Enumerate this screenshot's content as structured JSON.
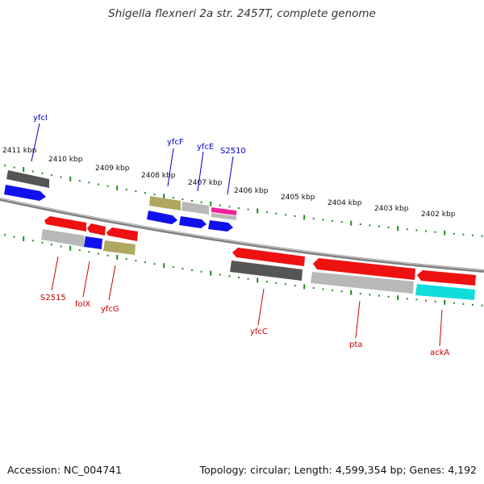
{
  "title": "Shigella flexneri 2a str. 2457T, complete genome",
  "footer": {
    "accession": "Accession: NC_004741",
    "topology": "Topology: circular; Length: 4,599,354 bp; Genes: 4,192"
  },
  "colors": {
    "plus_label": "#0000cc",
    "minus_label": "#cc0000",
    "tick": "#228822",
    "backbone": "#808080",
    "red": "#ee1111",
    "blue": "#1111ee",
    "dark_grey": "#555555",
    "light_grey": "#b8b8b8",
    "olive": "#b0a860",
    "magenta": "#ee2299",
    "cyan": "#11dddd"
  },
  "scale_labels": [
    "2411 kbp",
    "2410 kbp",
    "2409 kbp",
    "2408 kbp",
    "2407 kbp",
    "2406 kbp",
    "2405 kbp",
    "2404 kbp",
    "2403 kbp",
    "2402 kbp"
  ],
  "plus_strand_labels": [
    "yfcI",
    "yfcF",
    "yfcE",
    "S2510"
  ],
  "minus_strand_labels": [
    "S2515",
    "folX",
    "yfcG",
    "yfcC",
    "pta",
    "ackA"
  ]
}
